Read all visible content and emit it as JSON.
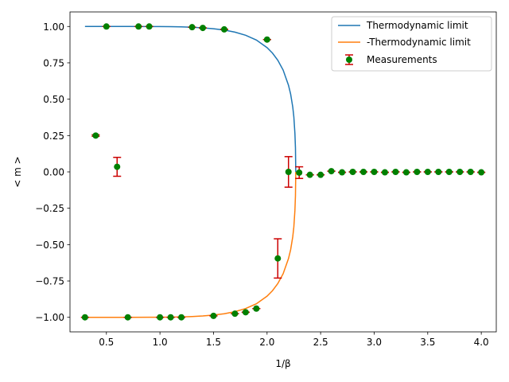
{
  "chart_data": {
    "type": "line",
    "title": "",
    "xlabel": "1/β",
    "ylabel": "< m >",
    "xlim": [
      0.16,
      4.14
    ],
    "ylim": [
      -1.1,
      1.1
    ],
    "xticks": [
      0.5,
      1.0,
      1.5,
      2.0,
      2.5,
      3.0,
      3.5,
      4.0
    ],
    "xtick_labels": [
      "0.5",
      "1.0",
      "1.5",
      "2.0",
      "2.5",
      "3.0",
      "3.5",
      "4.0"
    ],
    "yticks": [
      -1.0,
      -0.75,
      -0.5,
      -0.25,
      0.0,
      0.25,
      0.5,
      0.75,
      1.0
    ],
    "ytick_labels": [
      "−1.00",
      "−0.75",
      "−0.50",
      "−0.25",
      "0.00",
      "0.25",
      "0.50",
      "0.75",
      "1.00"
    ],
    "grid": false,
    "legend_position": "top-right",
    "colors": {
      "thermo": "#1f77b4",
      "neg_thermo": "#ff7f0e",
      "marker": "#008000",
      "errorbar": "#cc0000"
    },
    "series": [
      {
        "name": "Thermodynamic limit",
        "kind": "line",
        "x": [
          0.3,
          0.5,
          0.7,
          0.9,
          1.0,
          1.1,
          1.2,
          1.3,
          1.4,
          1.5,
          1.6,
          1.7,
          1.8,
          1.9,
          2.0,
          2.05,
          2.1,
          2.15,
          2.2,
          2.22,
          2.24,
          2.25,
          2.26,
          2.265,
          2.268
        ],
        "y": [
          1.0,
          1.0,
          1.0,
          0.9996,
          0.9993,
          0.9986,
          0.9972,
          0.9948,
          0.9908,
          0.9847,
          0.9752,
          0.961,
          0.9396,
          0.9069,
          0.8546,
          0.8174,
          0.7682,
          0.7004,
          0.5958,
          0.5352,
          0.4454,
          0.3782,
          0.2652,
          0.1645,
          0.0
        ]
      },
      {
        "name": "-Thermodynamic limit",
        "kind": "line",
        "x": [
          0.3,
          0.5,
          0.7,
          0.9,
          1.0,
          1.1,
          1.2,
          1.3,
          1.4,
          1.5,
          1.6,
          1.7,
          1.8,
          1.9,
          2.0,
          2.05,
          2.1,
          2.15,
          2.2,
          2.22,
          2.24,
          2.25,
          2.26,
          2.265,
          2.268
        ],
        "y": [
          -1.0,
          -1.0,
          -1.0,
          -0.9996,
          -0.9993,
          -0.9986,
          -0.9972,
          -0.9948,
          -0.9908,
          -0.9847,
          -0.9752,
          -0.961,
          -0.9396,
          -0.9069,
          -0.8546,
          -0.8174,
          -0.7682,
          -0.7004,
          -0.5958,
          -0.5352,
          -0.4454,
          -0.3782,
          -0.2652,
          -0.1645,
          0.0
        ]
      },
      {
        "name": "Measurements",
        "kind": "errorbar",
        "x": [
          0.3,
          0.4,
          0.5,
          0.6,
          0.7,
          0.8,
          0.9,
          1.0,
          1.1,
          1.2,
          1.3,
          1.4,
          1.5,
          1.6,
          1.7,
          1.8,
          1.9,
          2.0,
          2.1,
          2.2,
          2.3,
          2.4,
          2.5,
          2.6,
          2.7,
          2.8,
          2.9,
          3.0,
          3.1,
          3.2,
          3.3,
          3.4,
          3.5,
          3.6,
          3.7,
          3.8,
          3.9,
          4.0
        ],
        "y": [
          -1.0,
          0.25,
          1.0,
          0.035,
          -1.0,
          1.0,
          1.0,
          -1.0,
          -1.0,
          -1.0,
          0.995,
          0.99,
          -0.99,
          0.98,
          -0.975,
          -0.965,
          -0.94,
          0.91,
          -0.595,
          0.0,
          -0.005,
          -0.02,
          -0.02,
          0.005,
          -0.003,
          0.0,
          0.0,
          0.0,
          -0.003,
          0.0,
          -0.003,
          0.0,
          0.0,
          0.0,
          0.0,
          0.0,
          0.0,
          -0.003
        ],
        "yerr": [
          0.0,
          0.005,
          0.0,
          0.065,
          0.0,
          0.0,
          0.0,
          0.0,
          0.0,
          0.0,
          0.0,
          0.0,
          0.0,
          0.0,
          0.0,
          0.0,
          0.0,
          0.0,
          0.135,
          0.105,
          0.04,
          0.0,
          0.0,
          0.0,
          0.0,
          0.0,
          0.0,
          0.0,
          0.0,
          0.0,
          0.0,
          0.0,
          0.0,
          0.0,
          0.0,
          0.0,
          0.0,
          0.0
        ]
      }
    ]
  }
}
